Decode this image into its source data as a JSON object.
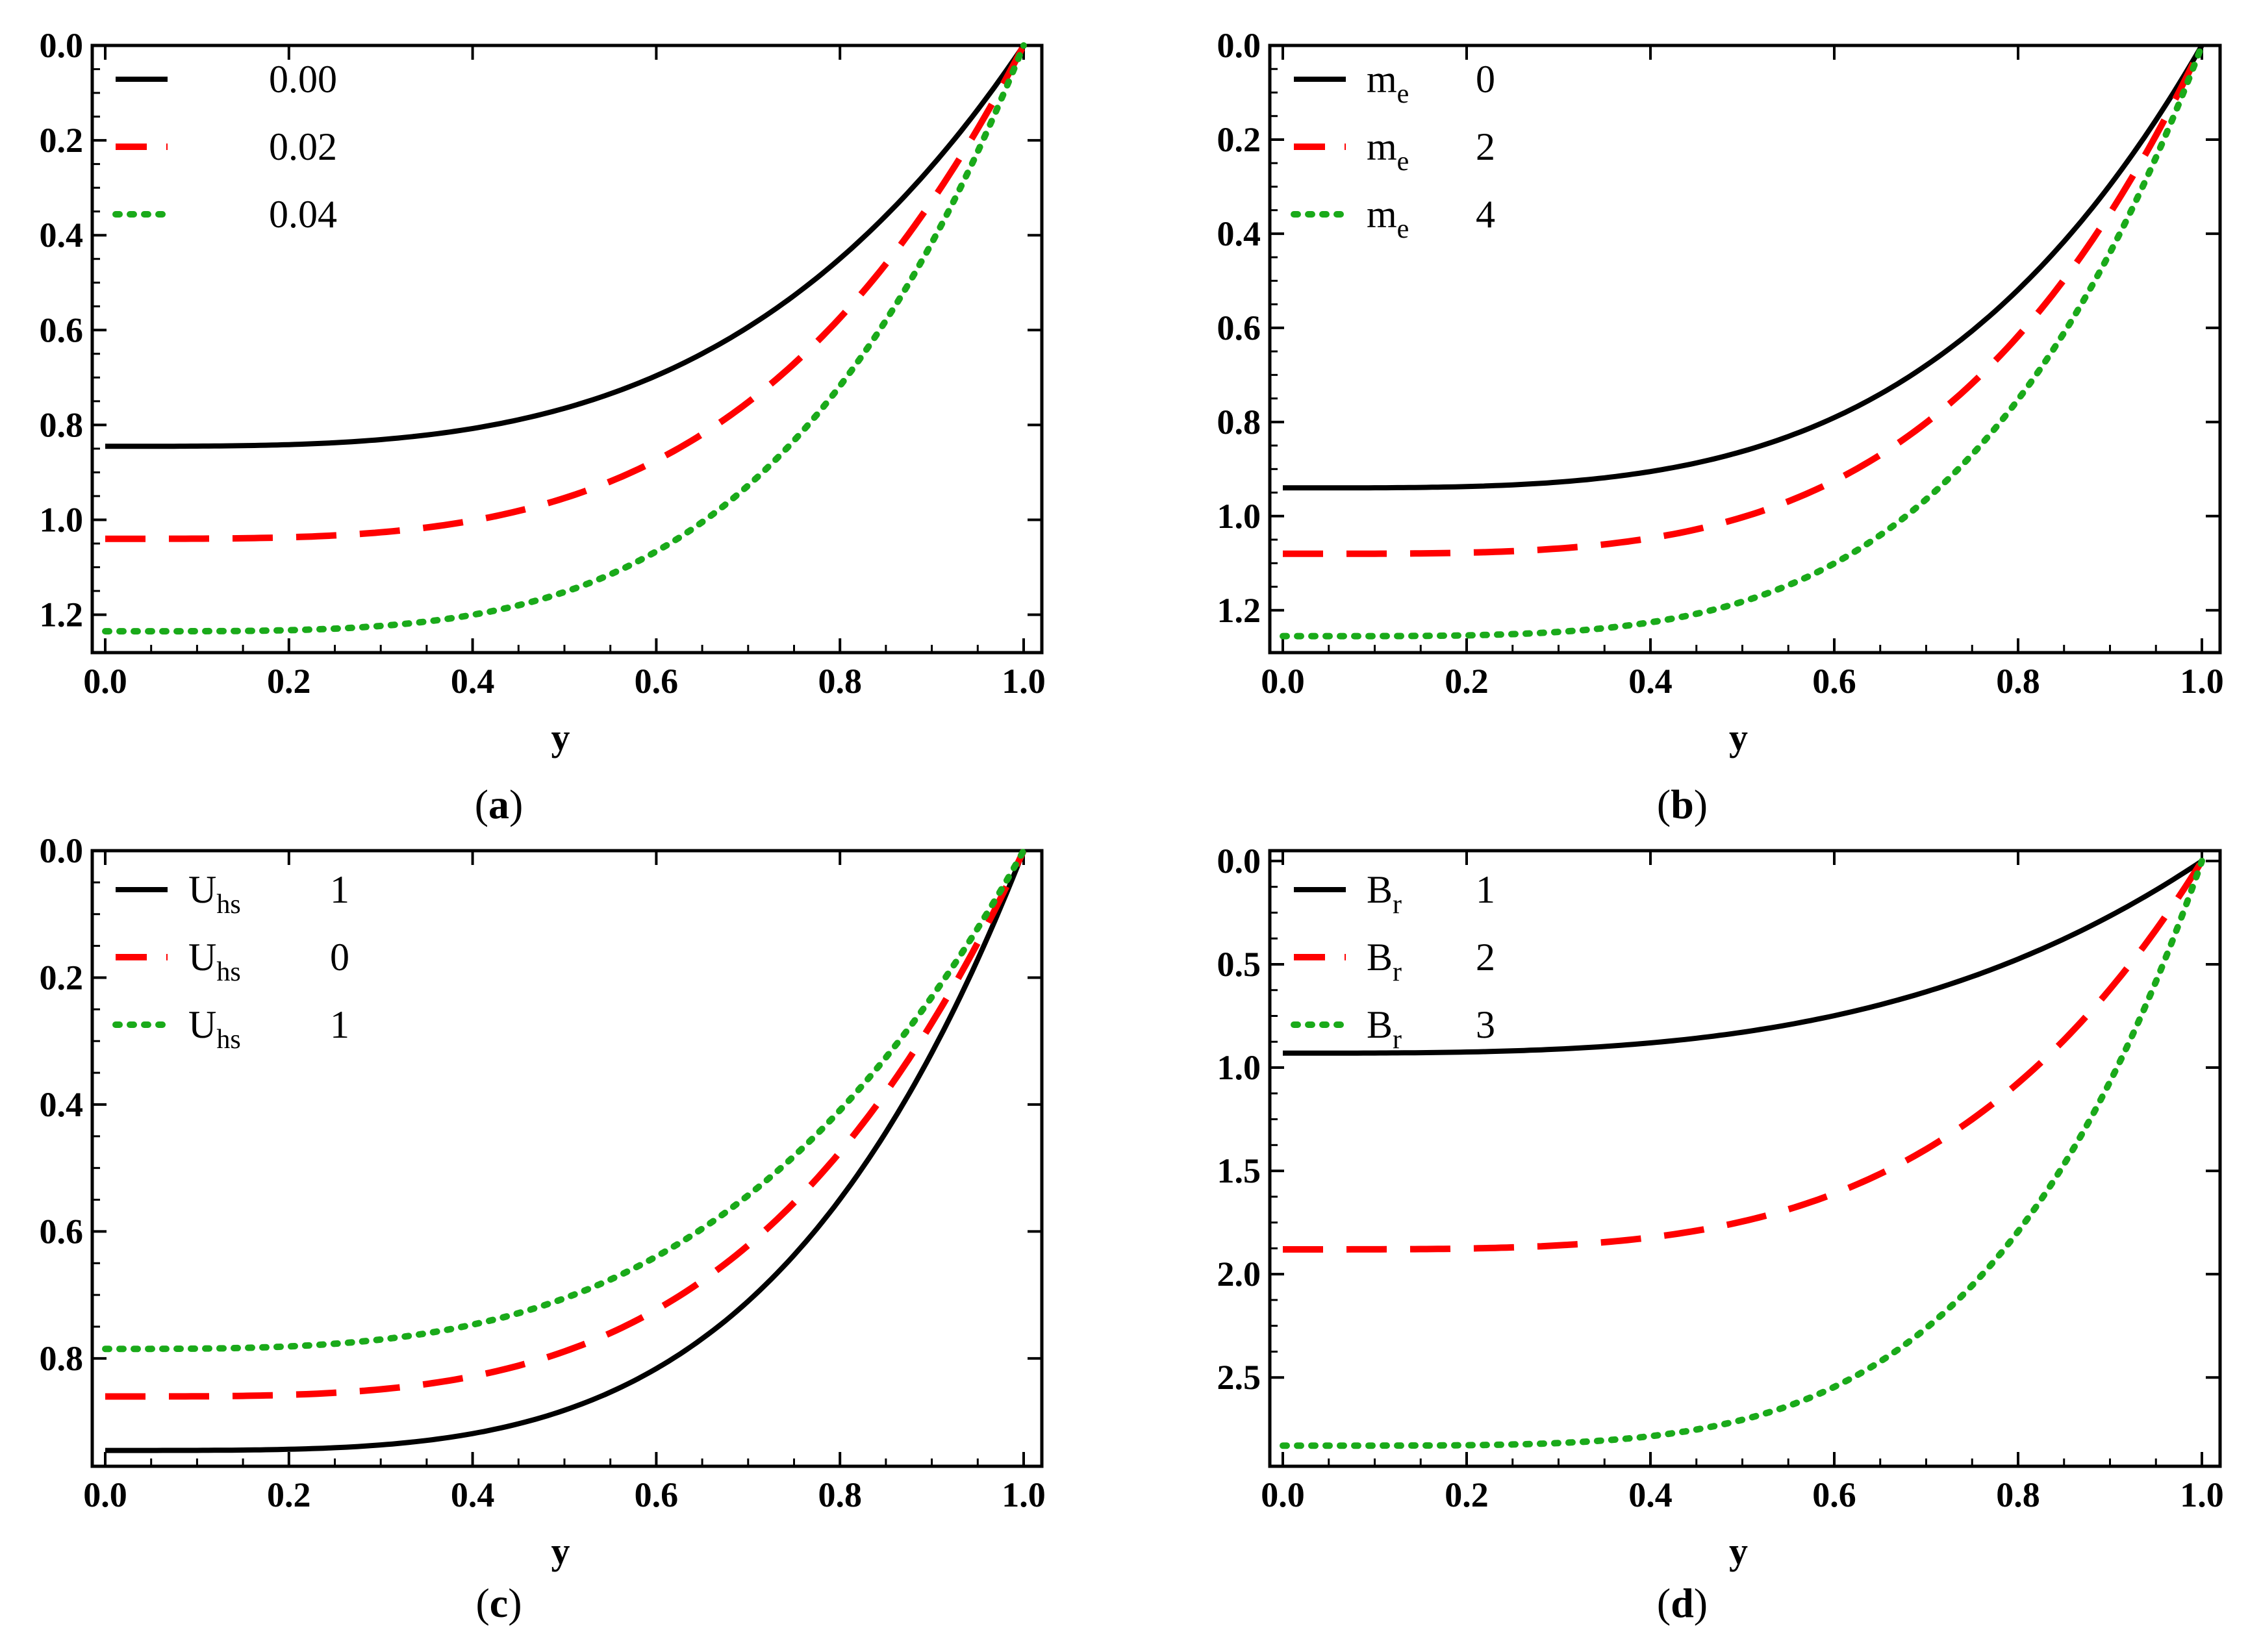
{
  "figure": {
    "background": "#ffffff"
  },
  "style": {
    "series_colors": [
      "#000000",
      "#ff0000",
      "#1aaa1a"
    ],
    "series_styles": [
      "solid",
      "dashed",
      "dotted"
    ]
  },
  "chart_data": [
    {
      "id": "a",
      "type": "line",
      "caption_letter": "a",
      "caption_open": "(",
      "caption_close": ")",
      "xlabel": "y",
      "ylabel": "",
      "xlim": [
        0.0,
        1.0
      ],
      "ylim": [
        0.0,
        1.28
      ],
      "y_inverted": true,
      "xticks": [
        "0.0",
        "0.2",
        "0.4",
        "0.6",
        "0.8",
        "1.0"
      ],
      "yticks": [
        "0.0",
        "0.2",
        "0.4",
        "0.6",
        "0.8",
        "1.0",
        "1.2"
      ],
      "legend_position": "top-left",
      "series": [
        {
          "name": "",
          "sub": "",
          "value": "0.00",
          "bottom": 0.845,
          "power": 3.4
        },
        {
          "name": "",
          "sub": "",
          "value": "0.02",
          "bottom": 1.04,
          "power": 3.6
        },
        {
          "name": "",
          "sub": "",
          "value": "0.04",
          "bottom": 1.235,
          "power": 3.9
        }
      ]
    },
    {
      "id": "b",
      "type": "line",
      "caption_letter": "b",
      "caption_open": "(",
      "caption_close": ")",
      "xlabel": "y",
      "ylabel": "",
      "xlim": [
        0.0,
        1.0
      ],
      "ylim": [
        0.0,
        1.29
      ],
      "y_inverted": true,
      "xticks": [
        "0.0",
        "0.2",
        "0.4",
        "0.6",
        "0.8",
        "1.0"
      ],
      "yticks": [
        "0.0",
        "0.2",
        "0.4",
        "0.6",
        "0.8",
        "1.0",
        "1.2"
      ],
      "legend_position": "top-left",
      "series": [
        {
          "name": "m",
          "sub": "e",
          "value": "0",
          "bottom": 0.94,
          "power": 3.6
        },
        {
          "name": "m",
          "sub": "e",
          "value": "2",
          "bottom": 1.08,
          "power": 3.8
        },
        {
          "name": "m",
          "sub": "e",
          "value": "4",
          "bottom": 1.255,
          "power": 4.1
        }
      ]
    },
    {
      "id": "c",
      "type": "line",
      "caption_letter": "c",
      "caption_open": "(",
      "caption_close": ")",
      "xlabel": "y",
      "ylabel": "",
      "xlim": [
        0.0,
        1.0
      ],
      "ylim": [
        0.0,
        0.97
      ],
      "y_inverted": true,
      "xticks": [
        "0.0",
        "0.2",
        "0.4",
        "0.6",
        "0.8",
        "1.0"
      ],
      "yticks": [
        "0.0",
        "0.2",
        "0.4",
        "0.6",
        "0.8"
      ],
      "legend_position": "top-left",
      "series": [
        {
          "name": "U",
          "sub": "hs",
          "value": "1",
          "bottom": 0.945,
          "power": 3.9
        },
        {
          "name": "U",
          "sub": "hs",
          "value": "0",
          "bottom": 0.86,
          "power": 3.6
        },
        {
          "name": "U",
          "sub": "hs",
          "value": "1",
          "bottom": 0.785,
          "power": 3.3
        }
      ]
    },
    {
      "id": "d",
      "type": "line",
      "caption_letter": "d",
      "caption_open": "(",
      "caption_close": ")",
      "xlabel": "y",
      "ylabel": "",
      "xlim": [
        0.0,
        1.0
      ],
      "ylim": [
        -0.05,
        2.93
      ],
      "y_inverted": true,
      "xticks": [
        "0.0",
        "0.2",
        "0.4",
        "0.6",
        "0.8",
        "1.0"
      ],
      "yticks": [
        "0.0",
        "0.5",
        "1.0",
        "1.5",
        "2.0",
        "2.5"
      ],
      "legend_position": "top-left",
      "series": [
        {
          "name": "B",
          "sub": "r",
          "value": "1",
          "bottom": 0.93,
          "power": 3.2
        },
        {
          "name": "B",
          "sub": "r",
          "value": "2",
          "bottom": 1.88,
          "power": 3.8
        },
        {
          "name": "B",
          "sub": "r",
          "value": "3",
          "bottom": 2.83,
          "power": 4.5
        }
      ]
    }
  ]
}
